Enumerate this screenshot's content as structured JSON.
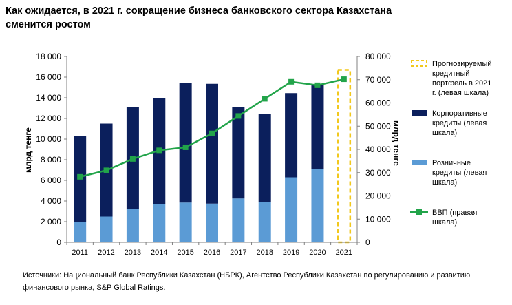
{
  "title_line1": "Как ожидается, в 2021 г. сокращение бизнеса банковского сектора Казахстана",
  "title_line2": "сменится ростом",
  "source_line1": "Источники: Национальный банк Республики Казахстан (НБРК), Агентство Республики Казахстан по регулированию и развитию",
  "source_line2": "финансового рынка, S&P Global Ratings.",
  "colors": {
    "corporate": "#0b1f5c",
    "retail": "#5b9bd5",
    "gdp": "#22a44a",
    "forecast": "#f2c81d",
    "axis": "#808080"
  },
  "chart_data": {
    "type": "bar",
    "title": "Как ожидается, в 2021 г. сокращение бизнеса банковского сектора Казахстана сменится ростом",
    "categories": [
      "2011",
      "2012",
      "2013",
      "2014",
      "2015",
      "2016",
      "2017",
      "2018",
      "2019",
      "2020",
      "2021"
    ],
    "ylabel": "млрд тенге",
    "y2label": "млрд тенге",
    "ylim": [
      0,
      18000
    ],
    "y2lim": [
      0,
      80000
    ],
    "yticks": [
      0,
      2000,
      4000,
      6000,
      8000,
      10000,
      12000,
      14000,
      16000,
      18000
    ],
    "yticks_labels": [
      "0",
      "2 000",
      "4 000",
      "6 000",
      "8 000",
      "10 000",
      "12 000",
      "14 000",
      "16 000",
      "18 000"
    ],
    "y2ticks": [
      0,
      10000,
      20000,
      30000,
      40000,
      50000,
      60000,
      70000,
      80000
    ],
    "y2ticks_labels": [
      "0",
      "10 000",
      "20 000",
      "30 000",
      "40 000",
      "50 000",
      "60 000",
      "70 000",
      "80 000"
    ],
    "legend_position": "right",
    "series": [
      {
        "name": "Розничные кредиты (левая шкала)",
        "type": "bar-stacked",
        "values": [
          2000,
          2500,
          3250,
          3700,
          3850,
          3750,
          4250,
          3900,
          6300,
          7100,
          null
        ]
      },
      {
        "name": "Корпоративные кредиты (левая шкала)",
        "type": "bar-stacked",
        "values": [
          8300,
          9000,
          9850,
          10300,
          11600,
          11600,
          8850,
          8500,
          8150,
          8100,
          null
        ]
      },
      {
        "name": "Прогнозируемый кредитный портфель в 2021 г. (левая шкала)",
        "type": "bar-outline",
        "values": [
          null,
          null,
          null,
          null,
          null,
          null,
          null,
          null,
          null,
          null,
          16700
        ]
      },
      {
        "name": "ВВП (правая шкала)",
        "type": "line",
        "axis": "right",
        "values": [
          28200,
          31000,
          35900,
          39600,
          40900,
          46900,
          54400,
          61800,
          69100,
          67600,
          70200
        ]
      }
    ]
  }
}
